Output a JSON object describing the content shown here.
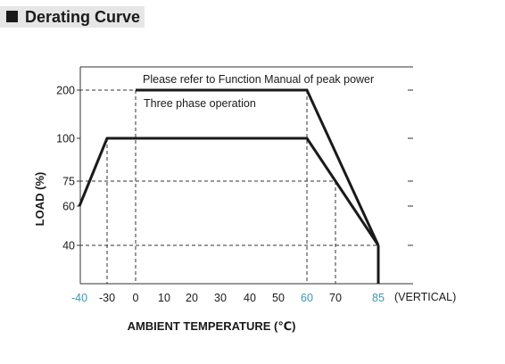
{
  "header": {
    "title": "Derating Curve"
  },
  "chart_data": {
    "type": "line",
    "title": "",
    "xlabel": "AMBIENT TEMPERATURE (℃)",
    "ylabel": "LOAD (%)",
    "x_suffix": "(VERTICAL)",
    "xlim": [
      -40,
      85
    ],
    "ylim": [
      20,
      220
    ],
    "x_ticks": [
      {
        "value": -40,
        "label": "-40",
        "highlight": true
      },
      {
        "value": -30,
        "label": "-30",
        "highlight": false
      },
      {
        "value": 0,
        "label": "0",
        "highlight": false
      },
      {
        "value": 10,
        "label": "10",
        "highlight": false
      },
      {
        "value": 20,
        "label": "20",
        "highlight": false
      },
      {
        "value": 30,
        "label": "30",
        "highlight": false
      },
      {
        "value": 40,
        "label": "40",
        "highlight": false
      },
      {
        "value": 50,
        "label": "50",
        "highlight": false
      },
      {
        "value": 60,
        "label": "60",
        "highlight": true
      },
      {
        "value": 70,
        "label": "70",
        "highlight": false
      },
      {
        "value": 85,
        "label": "85",
        "highlight": true
      }
    ],
    "y_ticks": [
      {
        "value": 40,
        "label": "40"
      },
      {
        "value": 60,
        "label": "60"
      },
      {
        "value": 75,
        "label": "75"
      },
      {
        "value": 100,
        "label": "100"
      },
      {
        "value": 200,
        "label": "200"
      }
    ],
    "series": [
      {
        "x": [
          -40,
          -30,
          60,
          85
        ],
        "y": [
          60,
          100,
          100,
          40
        ]
      },
      {
        "x": [
          0,
          60,
          85
        ],
        "y": [
          200,
          200,
          40
        ]
      }
    ],
    "vertical_drop": {
      "x": 85,
      "y": [
        40,
        20
      ]
    },
    "guide_lines": [
      {
        "points": [
          [
            -40,
            200
          ],
          [
            0,
            200
          ],
          [
            0,
            20
          ]
        ]
      },
      {
        "points": [
          [
            -40,
            75
          ],
          [
            70,
            75
          ],
          [
            70,
            20
          ]
        ]
      },
      {
        "points": [
          [
            -40,
            40
          ],
          [
            85,
            40
          ]
        ]
      },
      {
        "points": [
          [
            -30,
            100
          ],
          [
            -30,
            20
          ]
        ]
      },
      {
        "points": [
          [
            60,
            200
          ],
          [
            60,
            20
          ]
        ]
      }
    ],
    "annotations": [
      {
        "text": "Please refer to Function Manual of peak power"
      },
      {
        "text": "Three phase operation"
      }
    ],
    "colors": {
      "curve": "#1a1a1a",
      "axis": "#333333",
      "highlight_tick": "#3a9ab0"
    }
  }
}
